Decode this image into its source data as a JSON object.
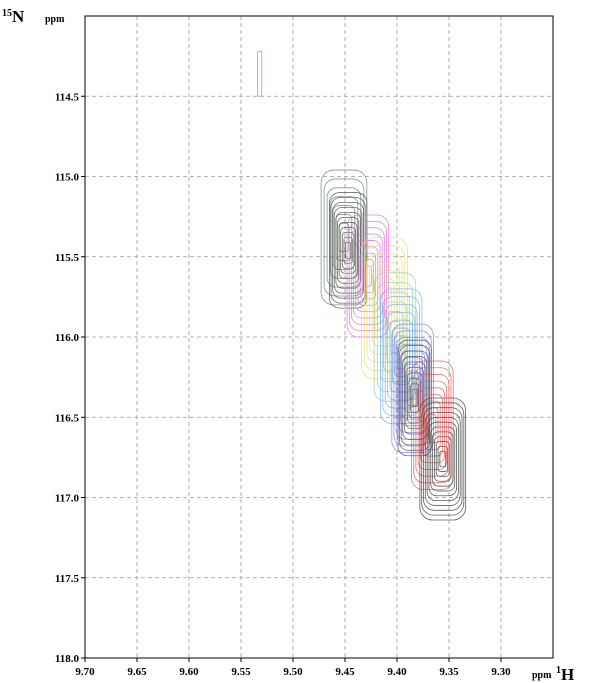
{
  "chart_data": {
    "type": "contour",
    "x_axis": {
      "nucleus_mass": "1",
      "nucleus_symbol": "H",
      "unit": "ppm",
      "range": [
        9.7,
        9.25
      ],
      "reversed": true,
      "ticks": [
        9.7,
        9.65,
        9.6,
        9.55,
        9.5,
        9.45,
        9.4,
        9.35,
        9.3
      ],
      "tick_labels": [
        "9.70",
        "9.65",
        "9.60",
        "9.55",
        "9.50",
        "9.45",
        "9.40",
        "9.35",
        "9.30"
      ]
    },
    "y_axis": {
      "nucleus_mass": "15",
      "nucleus_symbol": "N",
      "unit": "ppm",
      "range": [
        114.0,
        118.0
      ],
      "reversed": true,
      "ticks": [
        114.5,
        115.0,
        115.5,
        116.0,
        116.5,
        117.0,
        117.5,
        118.0
      ],
      "tick_labels": [
        "114.5",
        "115.0",
        "115.5",
        "116.0",
        "116.5",
        "117.0",
        "117.5",
        "118.0"
      ]
    },
    "grid": true,
    "peaks": [
      {
        "color": "#c08090",
        "x": 9.532,
        "y": 114.36,
        "wx": 0.002,
        "wy": 0.14,
        "levels": 1
      },
      {
        "color": "#6b8a74",
        "x": 9.451,
        "y": 115.38,
        "wx": 0.022,
        "wy": 0.42,
        "levels": 7
      },
      {
        "color": "#555555",
        "x": 9.447,
        "y": 115.46,
        "wx": 0.018,
        "wy": 0.36,
        "levels": 11
      },
      {
        "color": "#e070d8",
        "x": 9.428,
        "y": 115.62,
        "wx": 0.02,
        "wy": 0.38,
        "levels": 9
      },
      {
        "color": "#e8dd70",
        "x": 9.412,
        "y": 115.82,
        "wx": 0.022,
        "wy": 0.44,
        "levels": 8
      },
      {
        "color": "#8fd6a0",
        "x": 9.402,
        "y": 116.0,
        "wx": 0.02,
        "wy": 0.4,
        "levels": 6
      },
      {
        "color": "#7fb0e8",
        "x": 9.396,
        "y": 116.12,
        "wx": 0.02,
        "wy": 0.42,
        "levels": 8
      },
      {
        "color": "#8080e8",
        "x": 9.385,
        "y": 116.32,
        "wx": 0.02,
        "wy": 0.4,
        "levels": 9
      },
      {
        "color": "#555555",
        "x": 9.383,
        "y": 116.38,
        "wx": 0.016,
        "wy": 0.36,
        "levels": 10
      },
      {
        "color": "#e85a5a",
        "x": 9.366,
        "y": 116.55,
        "wx": 0.02,
        "wy": 0.4,
        "levels": 9
      },
      {
        "color": "#444444",
        "x": 9.356,
        "y": 116.76,
        "wx": 0.022,
        "wy": 0.38,
        "levels": 12
      }
    ]
  }
}
